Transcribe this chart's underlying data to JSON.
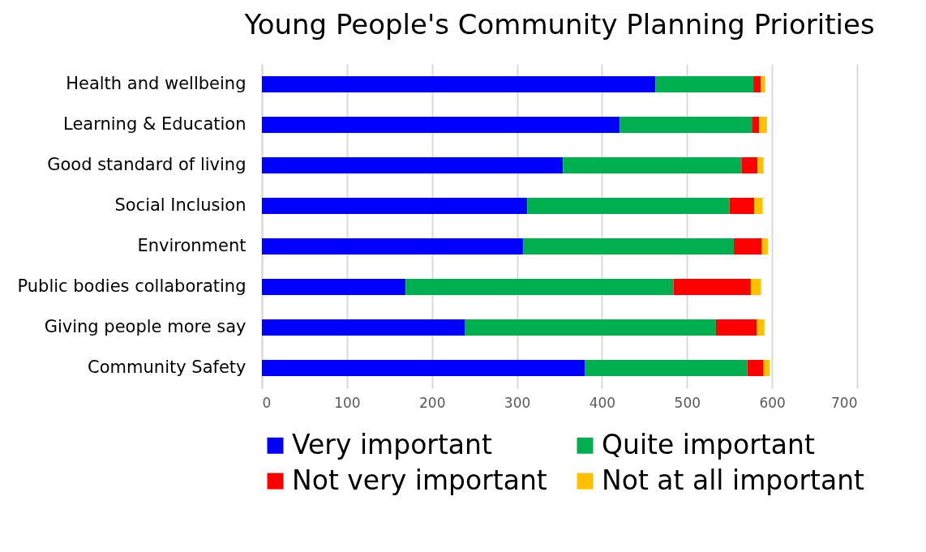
{
  "chart_data": {
    "type": "bar",
    "orientation": "horizontal",
    "stacked": true,
    "title": "Young People's Community Planning Priorities",
    "categories": [
      "Health and wellbeing",
      "Learning & Education",
      "Good standard of living",
      "Social Inclusion",
      "Environment",
      "Public bodies collaborating",
      "Giving people more say",
      "Community Safety"
    ],
    "series": [
      {
        "name": "Very important",
        "color": "#0000ff",
        "values": [
          463,
          421,
          354,
          312,
          307,
          169,
          239,
          380
        ]
      },
      {
        "name": "Quite important",
        "color": "#00b050",
        "values": [
          115,
          156,
          210,
          238,
          248,
          315,
          295,
          191
        ]
      },
      {
        "name": "Not very important",
        "color": "#ff0000",
        "values": [
          9,
          8,
          19,
          29,
          33,
          91,
          48,
          19
        ]
      },
      {
        "name": "Not at all important",
        "color": "#ffc000",
        "values": [
          5,
          9,
          7,
          10,
          7,
          12,
          9,
          7
        ]
      }
    ],
    "xlim": [
      0,
      700
    ],
    "xticks": [
      0,
      100,
      200,
      300,
      400,
      500,
      600,
      700
    ],
    "grid": "x",
    "legend": "bottom"
  }
}
